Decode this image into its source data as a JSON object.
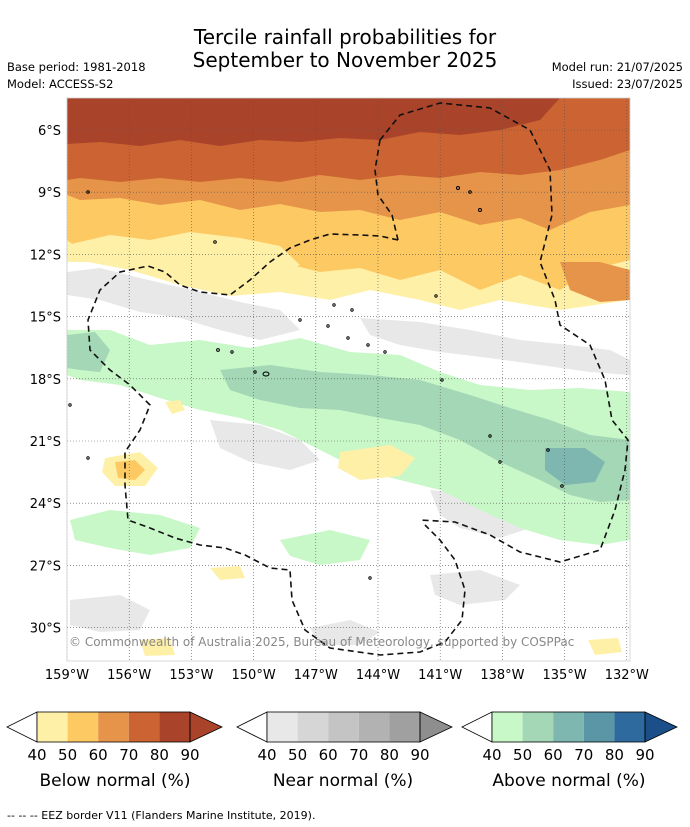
{
  "title": {
    "line1": "Tercile rainfall probabilities for",
    "line2": "September to November 2025"
  },
  "meta": {
    "base_period": "Base period: 1981-2018",
    "model": "Model: ACCESS-S2",
    "model_run": "Model run: 21/07/2025",
    "issued": "Issued: 23/07/2025"
  },
  "map": {
    "lat_labels": [
      "6°S",
      "9°S",
      "12°S",
      "15°S",
      "18°S",
      "21°S",
      "24°S",
      "27°S",
      "30°S"
    ],
    "lon_labels": [
      "159°W",
      "156°W",
      "153°W",
      "150°W",
      "147°W",
      "144°W",
      "141°W",
      "138°W",
      "135°W",
      "132°W"
    ],
    "copyright": "© Commonwealth of Australia 2025, Bureau of Meteorology, supported by COSPPac",
    "grid_lines": "dotted"
  },
  "colorbars": [
    {
      "name": "below",
      "title": "Below normal (%)",
      "ticks": [
        "40",
        "50",
        "60",
        "70",
        "80",
        "90"
      ],
      "colors": [
        "#fff0a8",
        "#fdc963",
        "#e6944a",
        "#cb6432",
        "#a9432a"
      ],
      "left_end": "#ffffff",
      "right_end": "#a9432a"
    },
    {
      "name": "near",
      "title": "Near normal (%)",
      "ticks": [
        "40",
        "50",
        "60",
        "70",
        "80",
        "90"
      ],
      "colors": [
        "#e8e8e8",
        "#d6d6d6",
        "#c4c4c4",
        "#b2b2b2",
        "#a0a0a0"
      ],
      "left_end": "#ffffff",
      "right_end": "#8e8e8e"
    },
    {
      "name": "above",
      "title": "Above normal (%)",
      "ticks": [
        "40",
        "50",
        "60",
        "70",
        "80",
        "90"
      ],
      "colors": [
        "#c8f7c8",
        "#a3d7b6",
        "#7eb7b0",
        "#5a96a6",
        "#2f6a9e"
      ],
      "left_end": "#ffffff",
      "right_end": "#1a4f8a"
    }
  ],
  "footer": "--  --  -- EEZ border V11 (Flanders Marine Institute, 2019)."
}
